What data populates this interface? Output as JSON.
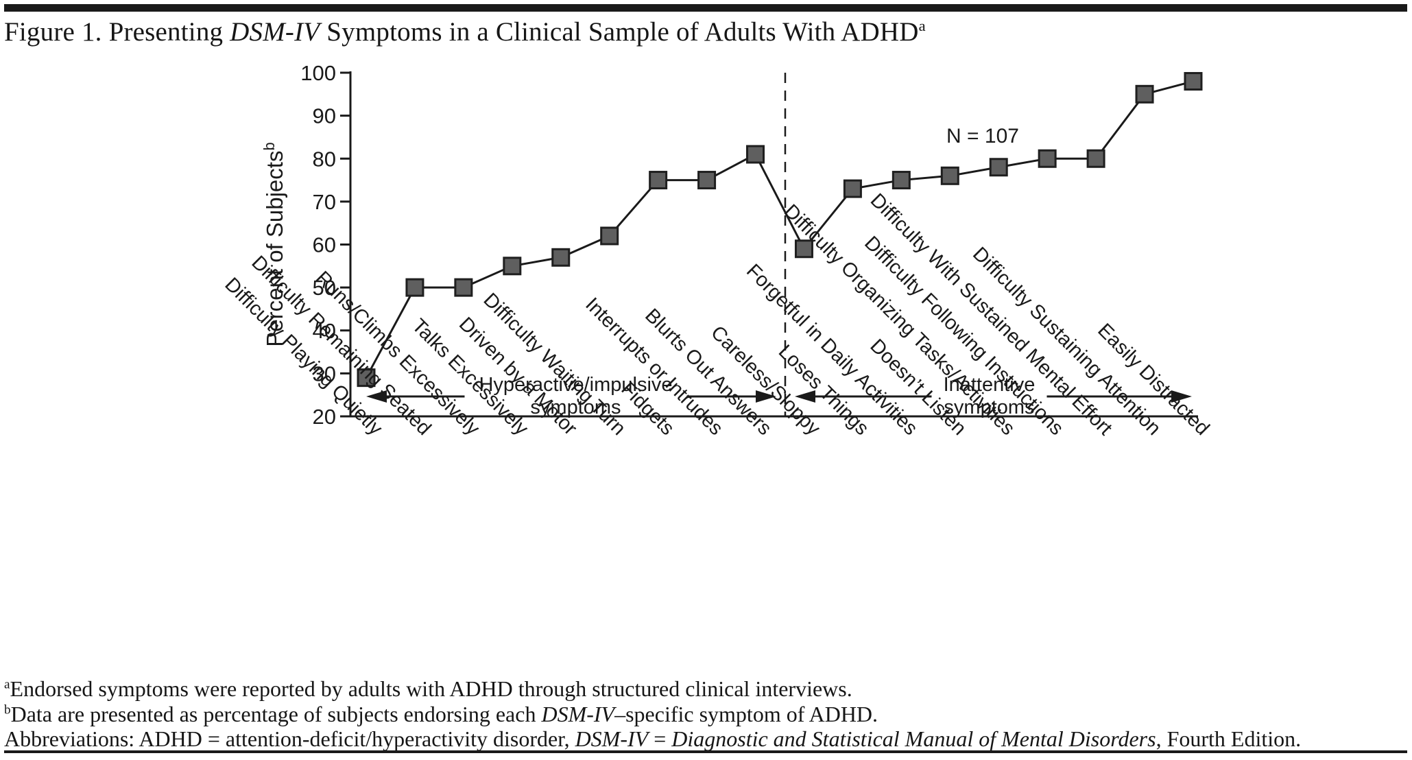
{
  "title": {
    "prefix": "Figure 1. Presenting ",
    "italic": "DSM-IV",
    "middle": " Symptoms in a Clinical Sample of Adults With ADHD",
    "superscript": "a"
  },
  "colors": {
    "ink": "#1a1a1a",
    "marker_fill": "#5f5f5f",
    "marker_edge": "#1f1f1f",
    "background": "#ffffff"
  },
  "chart_data": {
    "type": "line",
    "title": "",
    "xlabel": "",
    "ylabel": "Percent of Subjects",
    "ylabel_superscript": "b",
    "ylim": [
      20,
      100
    ],
    "yticks": [
      20,
      30,
      40,
      50,
      60,
      70,
      80,
      90,
      100
    ],
    "grid": false,
    "legend": "none",
    "marker": "square",
    "annotation": "N = 107",
    "divider_after_index": 8,
    "categories": [
      "Difficulty Playing Quietly",
      "Difficulty Remaining Seated",
      "Runs/Climbs Excessively",
      "Talks Excessively",
      "Driven by a Motor",
      "Difficulty Waiting Turn",
      "Fidgets",
      "Interrupts or Intrudes",
      "Blurts Out Answers",
      "Careless/Sloppy",
      "Loses Things",
      "Forgetful in Daily Activities",
      "Doesn’t Listen",
      "Difficulty Organizing Tasks/Activities",
      "Difficulty Following Instructions",
      "Difficulty With Sustained Mental Effort",
      "Difficulty Sustaining Attention",
      "Easily Distracted"
    ],
    "values": [
      29,
      50,
      50,
      55,
      57,
      62,
      75,
      75,
      81,
      59,
      73,
      75,
      76,
      78,
      80,
      80,
      95,
      98
    ],
    "sections": [
      {
        "line1": "Hyperactive/impulsive",
        "line2": "symptoms"
      },
      {
        "line1": "Inattentive",
        "line2": "symptoms"
      }
    ]
  },
  "footnotes": {
    "lines": [
      {
        "name": "footnote-a",
        "segments": [
          {
            "text": "a",
            "style": "sup"
          },
          {
            "text": "Endorsed symptoms were reported by adults with ADHD through structured clinical interviews.",
            "style": "plain"
          }
        ]
      },
      {
        "name": "footnote-b",
        "segments": [
          {
            "text": "b",
            "style": "sup"
          },
          {
            "text": "Data are presented as percentage of subjects endorsing each ",
            "style": "plain"
          },
          {
            "text": "DSM-IV",
            "style": "italic"
          },
          {
            "text": "–specific symptom of ADHD.",
            "style": "plain"
          }
        ]
      },
      {
        "name": "footnote-c",
        "segments": [
          {
            "text": "Abbreviations: ADHD = attention-deficit/hyperactivity disorder, ",
            "style": "plain"
          },
          {
            "text": "DSM-IV",
            "style": "italic"
          },
          {
            "text": " = ",
            "style": "plain"
          },
          {
            "text": "Diagnostic and Statistical Manual of Mental Disorders",
            "style": "italic"
          },
          {
            "text": ", Fourth Edition.",
            "style": "plain"
          }
        ]
      }
    ]
  }
}
